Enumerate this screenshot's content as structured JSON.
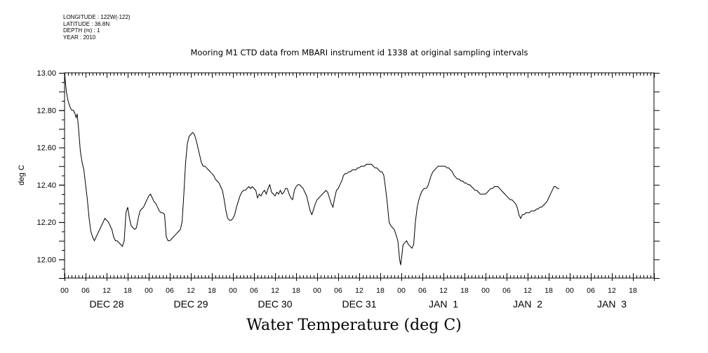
{
  "header": {
    "longitude": "LONGITUDE : 122W(-122)",
    "latitude": "LATITUDE : 36.8N",
    "depth": "DEPTH (m) : 1",
    "year": "YEAR : 2010"
  },
  "chart_data": {
    "type": "line",
    "title": "Mooring M1 CTD data from MBARI instrument id 1338 at original sampling intervals",
    "ylabel": "deg C",
    "xlabel": "",
    "footer_label": "Water Temperature (deg C)",
    "ylim": [
      11.9,
      13.0
    ],
    "yticks": [
      "12.00",
      "12.20",
      "12.40",
      "12.60",
      "12.80",
      "13.00"
    ],
    "hour_ticks": [
      "00",
      "06",
      "12",
      "18"
    ],
    "day_labels": [
      "DEC 28",
      "DEC 29",
      "DEC 30",
      "DEC 31",
      "JAN  1",
      "JAN  2",
      "JAN  3"
    ],
    "x_unit": "hours since 00 DEC 28",
    "xlim": [
      0,
      168
    ],
    "grid": false,
    "series": [
      {
        "color": "#000000",
        "points": [
          [
            0,
            13.0
          ],
          [
            0.5,
            12.9
          ],
          [
            1,
            12.85
          ],
          [
            1.5,
            12.82
          ],
          [
            2,
            12.8
          ],
          [
            2.5,
            12.8
          ],
          [
            3,
            12.78
          ],
          [
            3.3,
            12.76
          ],
          [
            3.6,
            12.78
          ],
          [
            4,
            12.7
          ],
          [
            4.5,
            12.58
          ],
          [
            5,
            12.52
          ],
          [
            5.5,
            12.48
          ],
          [
            6,
            12.4
          ],
          [
            6.5,
            12.32
          ],
          [
            7,
            12.22
          ],
          [
            7.5,
            12.15
          ],
          [
            8,
            12.12
          ],
          [
            8.5,
            12.1
          ],
          [
            9,
            12.12
          ],
          [
            9.5,
            12.14
          ],
          [
            10,
            12.16
          ],
          [
            10.5,
            12.18
          ],
          [
            11,
            12.2
          ],
          [
            11.5,
            12.22
          ],
          [
            12,
            12.21
          ],
          [
            12.5,
            12.2
          ],
          [
            13,
            12.18
          ],
          [
            13.5,
            12.16
          ],
          [
            14,
            12.12
          ],
          [
            14.5,
            12.1
          ],
          [
            15,
            12.1
          ],
          [
            15.5,
            12.09
          ],
          [
            16,
            12.08
          ],
          [
            16.5,
            12.07
          ],
          [
            17,
            12.1
          ],
          [
            17.5,
            12.25
          ],
          [
            18,
            12.28
          ],
          [
            18.5,
            12.22
          ],
          [
            19,
            12.18
          ],
          [
            19.5,
            12.17
          ],
          [
            20,
            12.16
          ],
          [
            20.5,
            12.17
          ],
          [
            21,
            12.22
          ],
          [
            21.5,
            12.26
          ],
          [
            22,
            12.27
          ],
          [
            22.5,
            12.28
          ],
          [
            23,
            12.3
          ],
          [
            23.5,
            12.32
          ],
          [
            24,
            12.34
          ],
          [
            24.5,
            12.35
          ],
          [
            25,
            12.33
          ],
          [
            25.5,
            12.31
          ],
          [
            26,
            12.3
          ],
          [
            26.5,
            12.28
          ],
          [
            27,
            12.26
          ],
          [
            27.5,
            12.25
          ],
          [
            28,
            12.25
          ],
          [
            28.5,
            12.24
          ],
          [
            29,
            12.12
          ],
          [
            29.5,
            12.1
          ],
          [
            30,
            12.1
          ],
          [
            30.5,
            12.11
          ],
          [
            31,
            12.12
          ],
          [
            31.5,
            12.13
          ],
          [
            32,
            12.14
          ],
          [
            32.5,
            12.15
          ],
          [
            33,
            12.16
          ],
          [
            33.5,
            12.2
          ],
          [
            34,
            12.35
          ],
          [
            34.5,
            12.52
          ],
          [
            35,
            12.62
          ],
          [
            35.5,
            12.66
          ],
          [
            36,
            12.67
          ],
          [
            36.5,
            12.68
          ],
          [
            37,
            12.67
          ],
          [
            37.5,
            12.64
          ],
          [
            38,
            12.6
          ],
          [
            38.5,
            12.56
          ],
          [
            39,
            12.52
          ],
          [
            39.5,
            12.5
          ],
          [
            40,
            12.5
          ],
          [
            40.5,
            12.49
          ],
          [
            41,
            12.48
          ],
          [
            41.5,
            12.47
          ],
          [
            42,
            12.46
          ],
          [
            42.5,
            12.45
          ],
          [
            43,
            12.43
          ],
          [
            43.5,
            12.42
          ],
          [
            44,
            12.41
          ],
          [
            44.5,
            12.39
          ],
          [
            45,
            12.37
          ],
          [
            45.5,
            12.32
          ],
          [
            46,
            12.26
          ],
          [
            46.5,
            12.22
          ],
          [
            47,
            12.21
          ],
          [
            47.5,
            12.21
          ],
          [
            48,
            12.22
          ],
          [
            48.5,
            12.24
          ],
          [
            49,
            12.28
          ],
          [
            49.5,
            12.31
          ],
          [
            50,
            12.34
          ],
          [
            50.5,
            12.36
          ],
          [
            51,
            12.37
          ],
          [
            51.5,
            12.37
          ],
          [
            52,
            12.38
          ],
          [
            52.5,
            12.39
          ],
          [
            53,
            12.38
          ],
          [
            53.5,
            12.39
          ],
          [
            54,
            12.38
          ],
          [
            54.5,
            12.37
          ],
          [
            55,
            12.33
          ],
          [
            55.5,
            12.35
          ],
          [
            56,
            12.34
          ],
          [
            56.5,
            12.36
          ],
          [
            57,
            12.37
          ],
          [
            57.5,
            12.35
          ],
          [
            58,
            12.38
          ],
          [
            58.5,
            12.4
          ],
          [
            59,
            12.36
          ],
          [
            59.5,
            12.35
          ],
          [
            60,
            12.34
          ],
          [
            60.5,
            12.36
          ],
          [
            61,
            12.35
          ],
          [
            61.5,
            12.37
          ],
          [
            62,
            12.35
          ],
          [
            62.5,
            12.36
          ],
          [
            63,
            12.38
          ],
          [
            63.5,
            12.38
          ],
          [
            64,
            12.35
          ],
          [
            64.5,
            12.33
          ],
          [
            65,
            12.32
          ],
          [
            65.5,
            12.37
          ],
          [
            66,
            12.39
          ],
          [
            66.5,
            12.4
          ],
          [
            67,
            12.4
          ],
          [
            67.5,
            12.39
          ],
          [
            68,
            12.38
          ],
          [
            68.5,
            12.36
          ],
          [
            69,
            12.34
          ],
          [
            69.5,
            12.3
          ],
          [
            70,
            12.26
          ],
          [
            70.5,
            12.24
          ],
          [
            71,
            12.27
          ],
          [
            71.5,
            12.3
          ],
          [
            72,
            12.32
          ],
          [
            72.5,
            12.33
          ],
          [
            73,
            12.34
          ],
          [
            73.5,
            12.35
          ],
          [
            74,
            12.36
          ],
          [
            74.5,
            12.37
          ],
          [
            75,
            12.36
          ],
          [
            75.5,
            12.33
          ],
          [
            76,
            12.3
          ],
          [
            76.5,
            12.28
          ],
          [
            77,
            12.33
          ],
          [
            77.5,
            12.37
          ],
          [
            78,
            12.38
          ],
          [
            78.5,
            12.4
          ],
          [
            79,
            12.42
          ],
          [
            79.5,
            12.45
          ],
          [
            80,
            12.46
          ],
          [
            80.5,
            12.46
          ],
          [
            81,
            12.47
          ],
          [
            81.5,
            12.47
          ],
          [
            82,
            12.48
          ],
          [
            82.5,
            12.48
          ],
          [
            83,
            12.48
          ],
          [
            83.5,
            12.49
          ],
          [
            84,
            12.49
          ],
          [
            84.5,
            12.5
          ],
          [
            85,
            12.5
          ],
          [
            85.5,
            12.5
          ],
          [
            86,
            12.51
          ],
          [
            86.5,
            12.51
          ],
          [
            87,
            12.51
          ],
          [
            87.5,
            12.51
          ],
          [
            88,
            12.5
          ],
          [
            88.5,
            12.49
          ],
          [
            89,
            12.49
          ],
          [
            89.5,
            12.48
          ],
          [
            90,
            12.47
          ],
          [
            90.5,
            12.47
          ],
          [
            91,
            12.45
          ],
          [
            91.5,
            12.38
          ],
          [
            92,
            12.3
          ],
          [
            92.5,
            12.2
          ],
          [
            93,
            12.18
          ],
          [
            93.5,
            12.17
          ],
          [
            94,
            12.16
          ],
          [
            94.5,
            12.13
          ],
          [
            95,
            12.1
          ],
          [
            95.5,
            12.0
          ],
          [
            95.8,
            11.97
          ],
          [
            96,
            12.0
          ],
          [
            96.5,
            12.08
          ],
          [
            97,
            12.09
          ],
          [
            97.5,
            12.1
          ],
          [
            98,
            12.08
          ],
          [
            98.5,
            12.07
          ],
          [
            99,
            12.06
          ],
          [
            99.5,
            12.08
          ],
          [
            100,
            12.2
          ],
          [
            100.5,
            12.28
          ],
          [
            101,
            12.32
          ],
          [
            101.5,
            12.35
          ],
          [
            102,
            12.37
          ],
          [
            102.5,
            12.38
          ],
          [
            103,
            12.38
          ],
          [
            103.5,
            12.39
          ],
          [
            104,
            12.42
          ],
          [
            104.5,
            12.45
          ],
          [
            105,
            12.47
          ],
          [
            105.5,
            12.48
          ],
          [
            106,
            12.49
          ],
          [
            106.5,
            12.5
          ],
          [
            107,
            12.5
          ],
          [
            107.5,
            12.5
          ],
          [
            108,
            12.5
          ],
          [
            108.5,
            12.5
          ],
          [
            109,
            12.49
          ],
          [
            109.5,
            12.49
          ],
          [
            110,
            12.48
          ],
          [
            110.5,
            12.47
          ],
          [
            111,
            12.45
          ],
          [
            111.5,
            12.44
          ],
          [
            112,
            12.43
          ],
          [
            112.5,
            12.43
          ],
          [
            113,
            12.42
          ],
          [
            113.5,
            12.42
          ],
          [
            114,
            12.41
          ],
          [
            114.5,
            12.41
          ],
          [
            115,
            12.4
          ],
          [
            115.5,
            12.4
          ],
          [
            116,
            12.39
          ],
          [
            116.5,
            12.38
          ],
          [
            117,
            12.37
          ],
          [
            117.5,
            12.37
          ],
          [
            118,
            12.36
          ],
          [
            118.5,
            12.35
          ],
          [
            119,
            12.35
          ],
          [
            119.5,
            12.35
          ],
          [
            120,
            12.35
          ],
          [
            120.5,
            12.36
          ],
          [
            121,
            12.37
          ],
          [
            121.5,
            12.38
          ],
          [
            122,
            12.38
          ],
          [
            122.5,
            12.39
          ],
          [
            123,
            12.39
          ],
          [
            123.5,
            12.39
          ],
          [
            124,
            12.38
          ],
          [
            124.5,
            12.37
          ],
          [
            125,
            12.36
          ],
          [
            125.5,
            12.35
          ],
          [
            126,
            12.34
          ],
          [
            126.5,
            12.33
          ],
          [
            127,
            12.32
          ],
          [
            127.5,
            12.32
          ],
          [
            128,
            12.31
          ],
          [
            128.5,
            12.3
          ],
          [
            129,
            12.28
          ],
          [
            129.5,
            12.24
          ],
          [
            130,
            12.22
          ],
          [
            130.5,
            12.24
          ],
          [
            131,
            12.24
          ],
          [
            131.5,
            12.25
          ],
          [
            132,
            12.25
          ],
          [
            132.5,
            12.25
          ],
          [
            133,
            12.26
          ],
          [
            133.5,
            12.26
          ],
          [
            134,
            12.26
          ],
          [
            134.5,
            12.27
          ],
          [
            135,
            12.27
          ],
          [
            135.5,
            12.28
          ],
          [
            136,
            12.28
          ],
          [
            136.5,
            12.29
          ],
          [
            137,
            12.3
          ],
          [
            137.5,
            12.31
          ],
          [
            138,
            12.33
          ],
          [
            138.5,
            12.35
          ],
          [
            139,
            12.37
          ],
          [
            139.5,
            12.39
          ],
          [
            140,
            12.39
          ],
          [
            140.5,
            12.38
          ],
          [
            141,
            12.38
          ]
        ]
      }
    ]
  }
}
